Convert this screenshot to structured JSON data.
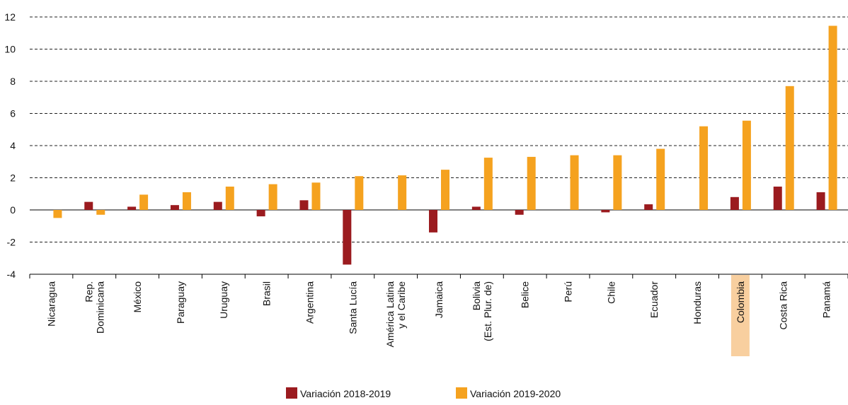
{
  "chart_data": {
    "type": "bar",
    "categories": [
      "Nicaragua",
      "Rep.\nDominicana",
      "México",
      "Paraguay",
      "Uruguay",
      "Brasil",
      "Argentina",
      "Santa Lucía",
      "América Latina\ny el Caribe",
      "Jamaica",
      "Bolivia\n(Est. Plur. de)",
      "Belice",
      "Perú",
      "Chile",
      "Ecuador",
      "Honduras",
      "Colombia",
      "Costa Rica",
      "Panamá"
    ],
    "series": [
      {
        "name": "Variación 2018-2019",
        "color": "#9b1b1f",
        "values": [
          null,
          0.5,
          0.2,
          0.3,
          0.5,
          -0.4,
          0.6,
          -3.4,
          null,
          -1.4,
          0.2,
          -0.3,
          null,
          -0.15,
          0.35,
          null,
          0.8,
          1.45,
          1.1
        ]
      },
      {
        "name": "Variación 2019-2020",
        "color": "#f5a21f",
        "values": [
          -0.5,
          -0.3,
          0.95,
          1.1,
          1.45,
          1.6,
          1.7,
          2.1,
          2.15,
          2.5,
          3.25,
          3.3,
          3.4,
          3.4,
          3.8,
          5.2,
          5.55,
          7.7,
          11.45
        ]
      }
    ],
    "ylim": [
      -4,
      12
    ],
    "yticks": [
      -4,
      -2,
      0,
      2,
      4,
      6,
      8,
      10,
      12
    ],
    "grid": true,
    "highlight_index": 16,
    "highlight_color": "#f8cf9f",
    "legend": "bottom"
  }
}
